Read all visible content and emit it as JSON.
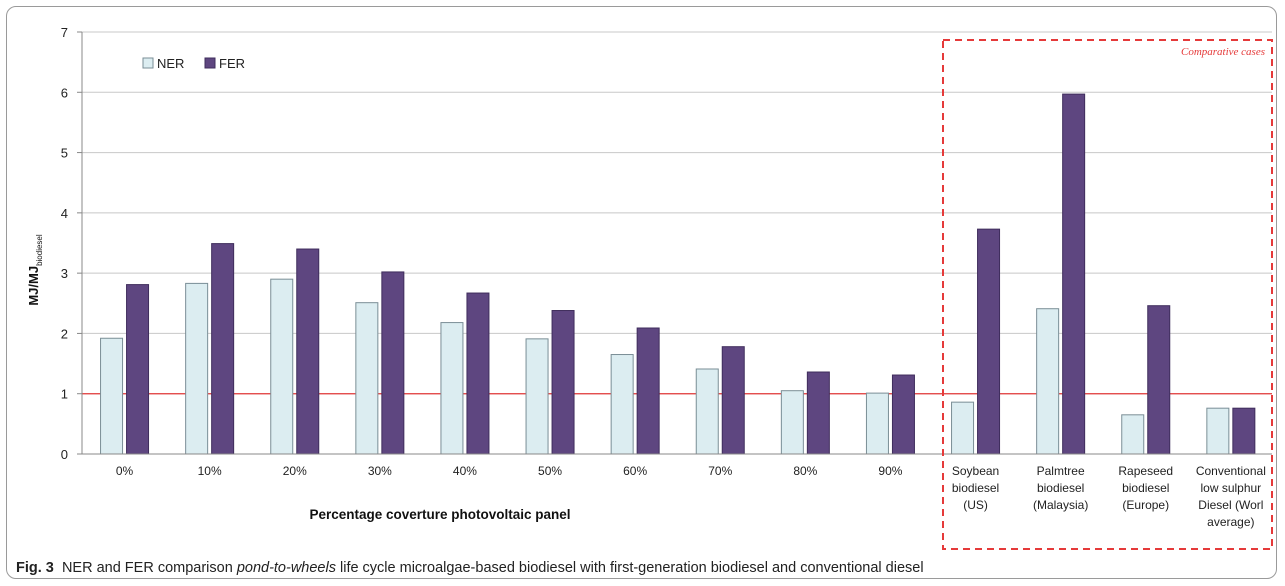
{
  "chart_data": {
    "type": "bar",
    "title": "",
    "xlabel": "Percentage coverture photovoltaic panel",
    "ylabel": {
      "main": "MJ/MJ",
      "sub": "biodiesel"
    },
    "ylim": [
      0,
      7
    ],
    "yticks": [
      "0",
      "1",
      "2",
      "3",
      "4",
      "5",
      "6",
      "7"
    ],
    "grid": true,
    "legend_position": "top-left",
    "reference_line": {
      "y": 1,
      "color": "#e53a3a"
    },
    "categories": [
      [
        "0%"
      ],
      [
        "10%"
      ],
      [
        "20%"
      ],
      [
        "30%"
      ],
      [
        "40%"
      ],
      [
        "50%"
      ],
      [
        "60%"
      ],
      [
        "70%"
      ],
      [
        "80%"
      ],
      [
        "90%"
      ],
      [
        "Soybean",
        "biodiesel",
        "(US)"
      ],
      [
        "Palmtree",
        "biodiesel",
        "(Malaysia)"
      ],
      [
        "Rapeseed",
        "biodiesel",
        "(Europe)"
      ],
      [
        "Conventional",
        "low sulphur",
        "Diesel (Worl",
        "average)"
      ]
    ],
    "series": [
      {
        "name": "NER",
        "color": "#dcedf1",
        "values": [
          1.92,
          2.83,
          2.9,
          2.51,
          2.18,
          1.91,
          1.65,
          1.41,
          1.05,
          1.01,
          0.86,
          2.41,
          0.65,
          0.76
        ]
      },
      {
        "name": "FER",
        "color": "#5e4680",
        "values": [
          2.81,
          3.49,
          3.4,
          3.02,
          2.67,
          2.38,
          2.09,
          1.78,
          1.36,
          1.31,
          3.73,
          5.97,
          2.46,
          0.76
        ]
      }
    ],
    "annotation": {
      "text": "Comparative cases",
      "color": "#e53a3a"
    }
  },
  "caption": {
    "label": "Fig. 3",
    "text_before": "NER and FER comparison ",
    "text_italic": "pond-to-wheels",
    "text_after": " life cycle microalgae-based biodiesel with first-generation biodiesel and conventional diesel"
  }
}
